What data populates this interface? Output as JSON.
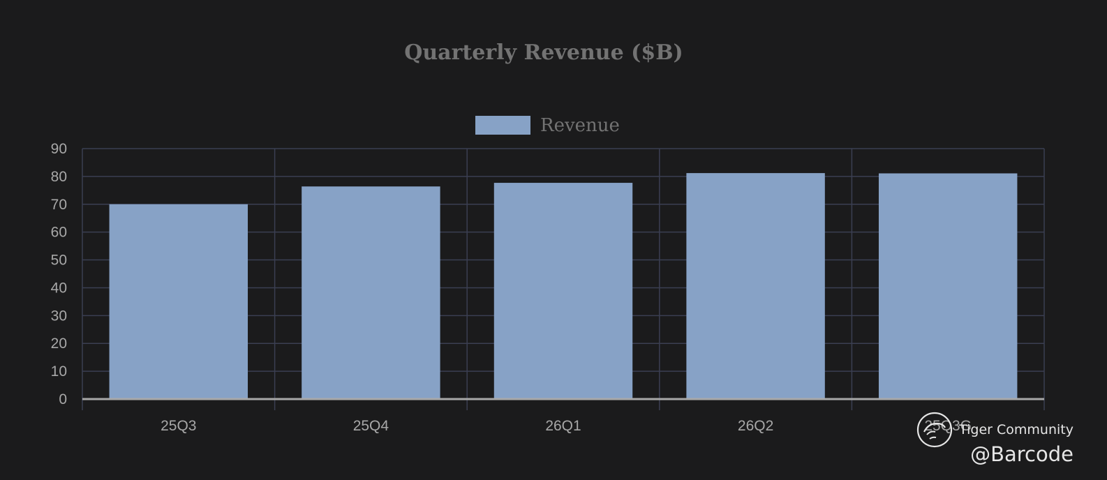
{
  "chart_data": {
    "type": "bar",
    "title": "Quarterly Revenue ($B)",
    "xlabel": "",
    "ylabel": "",
    "categories": [
      "25Q3",
      "25Q4",
      "26Q1",
      "26Q2",
      "25Q3G"
    ],
    "series": [
      {
        "name": "Revenue",
        "values": [
          70,
          76.4,
          77.7,
          81.2,
          81.1
        ],
        "color": "#87a2c6"
      }
    ],
    "ylim": [
      0,
      90
    ],
    "yticks": [
      0,
      10,
      20,
      30,
      40,
      50,
      60,
      70,
      80,
      90
    ],
    "grid": true,
    "legend": "top-center",
    "colors": {
      "background": "#1b1b1c",
      "grid": "#3b3f52",
      "axis": "#a8a8a8",
      "tick_text": "#a8a8a8",
      "title_text": "#737373",
      "legend_text": "#737373"
    }
  },
  "watermark": {
    "brand": "Tiger Community",
    "handle": "@Barcode",
    "logo_icon": "tiger-logo-icon"
  }
}
